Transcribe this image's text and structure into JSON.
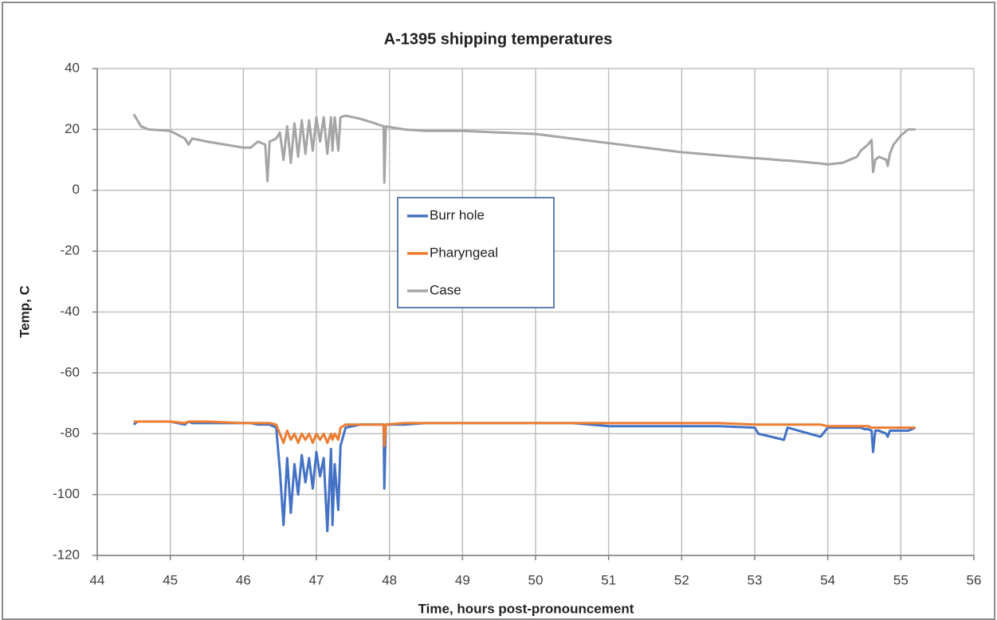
{
  "chart_data": {
    "type": "line",
    "title": "A-1395 shipping temperatures",
    "xlabel": "Time, hours post-pronouncement",
    "ylabel": "Temp, C",
    "x": [
      44.5,
      44.55,
      44.6,
      44.7,
      45.0,
      45.2,
      45.25,
      45.3,
      45.5,
      46.0,
      46.1,
      46.2,
      46.3,
      46.33,
      46.36,
      46.45,
      46.5,
      46.55,
      46.6,
      46.65,
      46.7,
      46.75,
      46.8,
      46.85,
      46.9,
      46.95,
      47.0,
      47.05,
      47.1,
      47.15,
      47.2,
      47.22,
      47.25,
      47.3,
      47.33,
      47.4,
      47.6,
      47.8,
      47.92,
      47.93,
      47.95,
      48.2,
      48.5,
      49,
      49.5,
      50,
      50.5,
      51,
      51.5,
      52,
      52.5,
      53,
      53.05,
      53.4,
      53.45,
      53.9,
      54,
      54.2,
      54.3,
      54.4,
      54.45,
      54.5,
      54.55,
      54.6,
      54.62,
      54.65,
      54.7,
      54.8,
      54.82,
      54.85,
      54.9,
      55.0,
      55.1,
      55.2
    ],
    "series": [
      {
        "name": "Burr hole",
        "color": "#4472c4",
        "values": [
          -77,
          -76,
          -76,
          -76,
          -76,
          -77,
          -76,
          -76.5,
          -76.5,
          -76.5,
          -76.5,
          -77,
          -77,
          -77,
          -77,
          -78,
          -92,
          -110,
          -88,
          -106,
          -90,
          -100,
          -87,
          -96,
          -88,
          -98,
          -86,
          -94,
          -88,
          -112,
          -85,
          -110,
          -90,
          -105,
          -84,
          -78,
          -77,
          -77,
          -77,
          -98,
          -77,
          -77,
          -76.5,
          -76.5,
          -76.5,
          -76.5,
          -76.5,
          -77.5,
          -77.5,
          -77.5,
          -77.5,
          -78,
          -80,
          -82,
          -78,
          -81,
          -78,
          -78,
          -78,
          -78,
          -78,
          -78.5,
          -78.5,
          -79,
          -86,
          -79,
          -79,
          -80,
          -81,
          -79,
          -79,
          -79,
          -79,
          -78
        ]
      },
      {
        "name": "Pharyngeal",
        "color": "#ed7d31",
        "values": [
          -76,
          -76,
          -76,
          -76,
          -76,
          -76.5,
          -76,
          -76,
          -76,
          -76.5,
          -76.5,
          -76.5,
          -76.5,
          -76.5,
          -76.5,
          -77,
          -80,
          -83,
          -79,
          -82,
          -80,
          -83,
          -80,
          -82,
          -80,
          -83,
          -80,
          -82,
          -80,
          -83,
          -80,
          -82,
          -80,
          -82,
          -78,
          -77,
          -77,
          -77,
          -77,
          -84,
          -77,
          -76.5,
          -76.5,
          -76.5,
          -76.5,
          -76.5,
          -76.5,
          -76.5,
          -76.5,
          -76.5,
          -76.5,
          -77,
          -77,
          -77,
          -77,
          -77,
          -77.5,
          -77.5,
          -77.5,
          -77.5,
          -77.5,
          -77.5,
          -77.5,
          -78,
          -78,
          -78,
          -78,
          -78,
          -78,
          -78,
          -78,
          -78,
          -78,
          -78
        ]
      },
      {
        "name": "Case",
        "color": "#a5a5a5",
        "values": [
          25,
          23,
          21,
          20,
          19.5,
          17,
          15,
          17,
          16,
          14,
          14,
          16,
          15,
          3,
          16,
          17,
          19,
          10,
          21,
          9,
          22,
          11,
          23,
          12,
          23,
          13,
          24,
          16,
          24,
          12,
          24,
          13,
          24,
          13,
          24,
          24.5,
          23.5,
          22,
          21,
          2.5,
          21,
          20,
          19.5,
          19.5,
          19,
          18.5,
          17,
          15.5,
          14,
          12.5,
          11.5,
          10.5,
          10.5,
          9.8,
          9.8,
          8.8,
          8.5,
          9,
          10,
          11,
          13,
          14,
          15,
          16.5,
          6,
          10,
          11,
          10,
          8,
          12,
          15,
          18,
          20,
          20
        ]
      }
    ],
    "xlim": [
      44,
      56
    ],
    "xticks": [
      44,
      45,
      46,
      47,
      48,
      49,
      50,
      51,
      52,
      53,
      54,
      55,
      56
    ],
    "ylim": [
      -120,
      40
    ],
    "yticks": [
      -120,
      -100,
      -80,
      -60,
      -40,
      -20,
      0,
      20,
      40
    ],
    "grid": true,
    "legend": "center"
  }
}
